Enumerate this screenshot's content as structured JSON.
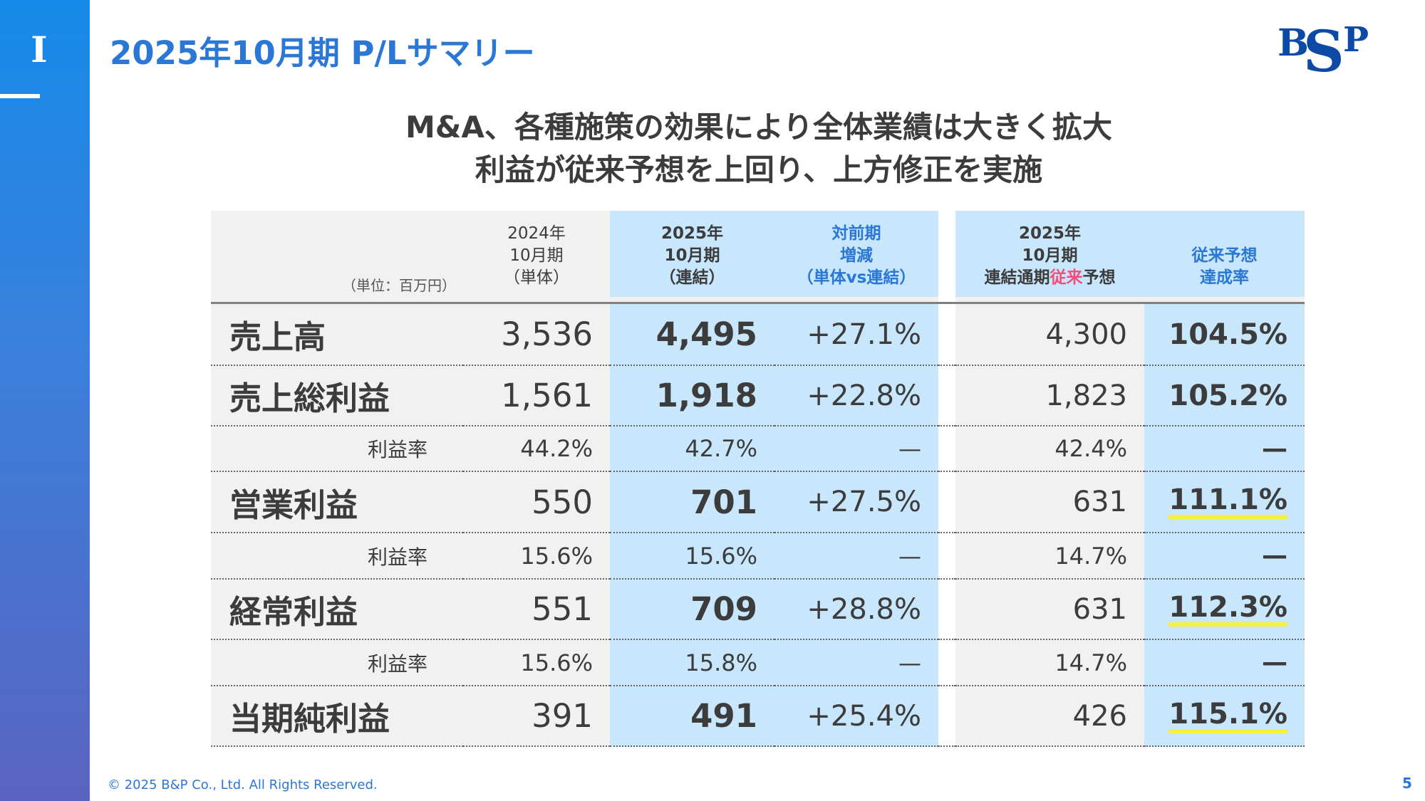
{
  "section": "I",
  "title": "2025年10月期 P/Lサマリー",
  "logo_text": "B&P",
  "headline": [
    "M&A、各種施策の効果により全体業績は大きく拡大",
    "利益が従来予想を上回り、上方修正を実施"
  ],
  "table": {
    "unit": "（単位：百万円）",
    "headers": {
      "c1": [
        "2024年",
        "10月期",
        "（単体）"
      ],
      "c2": [
        "2025年",
        "10月期",
        "（連結）"
      ],
      "c3": [
        "対前期",
        "増減",
        "（単体vs連結）"
      ],
      "c4": [
        "2025年",
        "10月期"
      ],
      "c4_line3": {
        "a": "連結通期",
        "b": "従来",
        "c": "予想"
      },
      "c5": [
        "従来予想",
        "達成率"
      ]
    },
    "rows": [
      {
        "type": "main",
        "label": "売上高",
        "v": [
          "3,536",
          "4,495",
          "+27.1%",
          "4,300",
          "104.5%"
        ],
        "ul": false
      },
      {
        "type": "main",
        "label": "売上総利益",
        "v": [
          "1,561",
          "1,918",
          "+22.8%",
          "1,823",
          "105.2%"
        ],
        "ul": false
      },
      {
        "type": "ratio",
        "label": "利益率",
        "v": [
          "44.2%",
          "42.7%",
          "—",
          "42.4%",
          "—"
        ],
        "ul": false
      },
      {
        "type": "main",
        "label": "営業利益",
        "v": [
          "550",
          "701",
          "+27.5%",
          "631",
          "111.1%"
        ],
        "ul": true
      },
      {
        "type": "ratio",
        "label": "利益率",
        "v": [
          "15.6%",
          "15.6%",
          "—",
          "14.7%",
          "—"
        ],
        "ul": false
      },
      {
        "type": "main",
        "label": "経常利益",
        "v": [
          "551",
          "709",
          "+28.8%",
          "631",
          "112.3%"
        ],
        "ul": true
      },
      {
        "type": "ratio",
        "label": "利益率",
        "v": [
          "15.6%",
          "15.8%",
          "—",
          "14.7%",
          "—"
        ],
        "ul": false
      },
      {
        "type": "main",
        "label": "当期純利益",
        "v": [
          "391",
          "491",
          "+25.4%",
          "426",
          "115.1%"
        ],
        "ul": true
      }
    ]
  },
  "footer": "© 2025 B&P Co., Ltd. All Rights Reserved.",
  "page": "5",
  "colors": {
    "accent": "#2a77d6",
    "highlight_col": "#c8e6fc",
    "underline": "#f5f03a",
    "pink": "#f0507a"
  }
}
